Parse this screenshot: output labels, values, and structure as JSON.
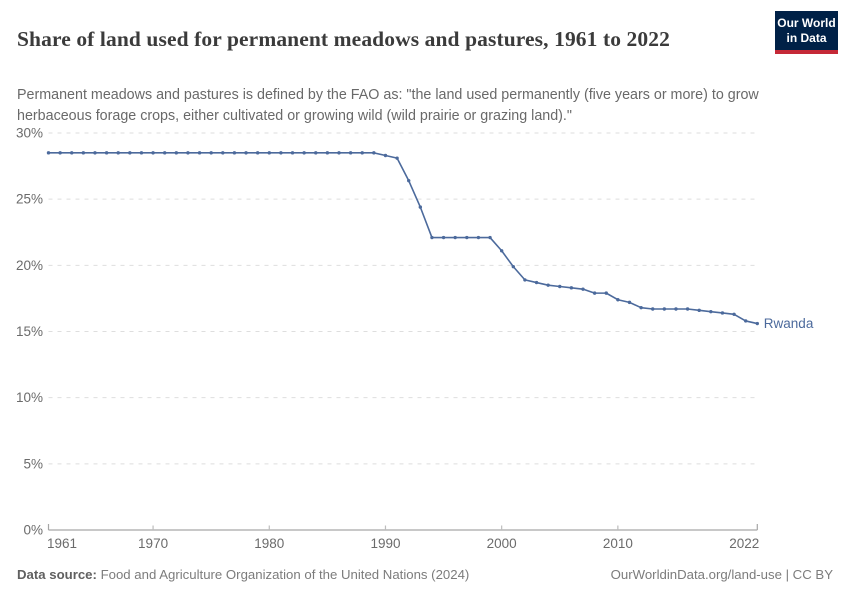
{
  "header": {
    "title": "Share of land used for permanent meadows and pastures, 1961 to 2022",
    "subtitle": "Permanent meadows and pastures is defined by the FAO as: \"the land used permanently (five years or more) to grow herbaceous forage crops, either cultivated or growing wild (wild prairie or grazing land).\"",
    "logo": {
      "line1": "Our World",
      "line2": "in Data",
      "bg_color": "#002147",
      "stripe_color": "#c52937"
    }
  },
  "chart_data": {
    "type": "line",
    "title": "Share of land used for permanent meadows and pastures, 1961 to 2022",
    "xlabel": "",
    "ylabel": "",
    "xlim": [
      1961,
      2022
    ],
    "ylim": [
      0,
      30
    ],
    "x_ticks": [
      1961,
      1970,
      1980,
      1990,
      2000,
      2010,
      2022
    ],
    "y_ticks": [
      0,
      5,
      10,
      15,
      20,
      25,
      30
    ],
    "y_tick_suffix": "%",
    "grid": "dashed-horizontal",
    "legend_position": "end-of-line-label",
    "series": [
      {
        "name": "Rwanda",
        "color": "#4C6A9C",
        "x": [
          1961,
          1962,
          1963,
          1964,
          1965,
          1966,
          1967,
          1968,
          1969,
          1970,
          1971,
          1972,
          1973,
          1974,
          1975,
          1976,
          1977,
          1978,
          1979,
          1980,
          1981,
          1982,
          1983,
          1984,
          1985,
          1986,
          1987,
          1988,
          1989,
          1990,
          1991,
          1992,
          1993,
          1994,
          1995,
          1996,
          1997,
          1998,
          1999,
          2000,
          2001,
          2002,
          2003,
          2004,
          2005,
          2006,
          2007,
          2008,
          2009,
          2010,
          2011,
          2012,
          2013,
          2014,
          2015,
          2016,
          2017,
          2018,
          2019,
          2020,
          2021,
          2022
        ],
        "values": [
          28.5,
          28.5,
          28.5,
          28.5,
          28.5,
          28.5,
          28.5,
          28.5,
          28.5,
          28.5,
          28.5,
          28.5,
          28.5,
          28.5,
          28.5,
          28.5,
          28.5,
          28.5,
          28.5,
          28.5,
          28.5,
          28.5,
          28.5,
          28.5,
          28.5,
          28.5,
          28.5,
          28.5,
          28.5,
          28.3,
          28.1,
          26.4,
          24.4,
          22.1,
          22.1,
          22.1,
          22.1,
          22.1,
          22.1,
          21.1,
          19.9,
          18.9,
          18.7,
          18.5,
          18.4,
          18.3,
          18.2,
          17.9,
          17.9,
          17.4,
          17.2,
          16.8,
          16.7,
          16.7,
          16.7,
          16.7,
          16.6,
          16.5,
          16.4,
          16.3,
          15.8,
          15.6
        ]
      }
    ]
  },
  "footer": {
    "data_source_label": "Data source:",
    "data_source": "Food and Agriculture Organization of the United Nations (2024)",
    "right_text": "OurWorldinData.org/land-use | CC BY"
  }
}
